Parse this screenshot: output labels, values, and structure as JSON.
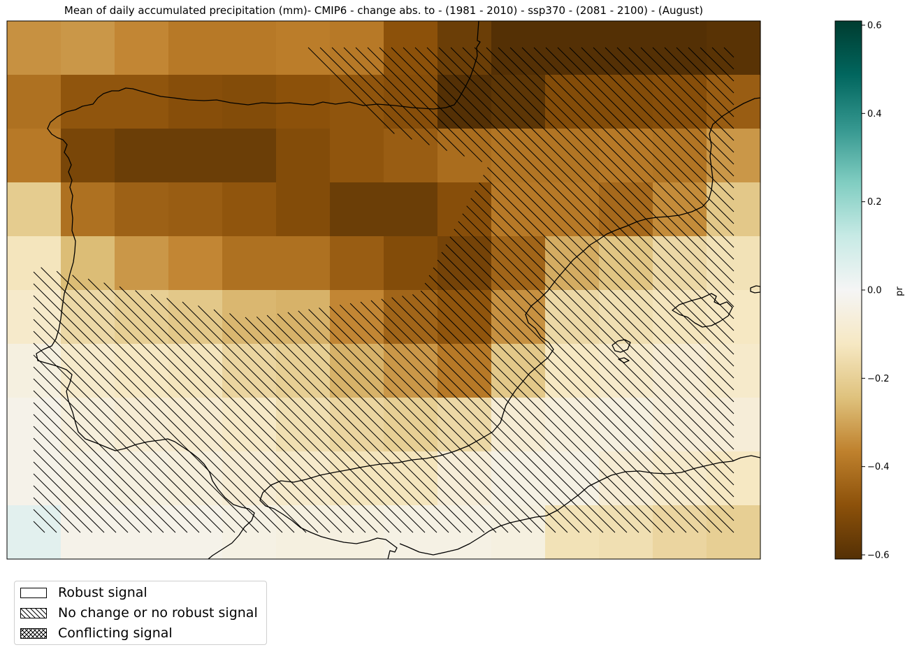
{
  "title": "Mean of daily accumulated precipitation (mm)- CMIP6 - change abs. to - (1981 - 2010)  - ssp370  - (2081 - 2100) - (August)",
  "colorbar": {
    "label": "pr",
    "range": [
      -0.6,
      0.6
    ],
    "ticks": [
      "0.6",
      "0.4",
      "0.2",
      "0.0",
      "−0.2",
      "−0.4",
      "−0.6"
    ],
    "tick_values": [
      0.6,
      0.4,
      0.2,
      0.0,
      -0.2,
      -0.4,
      -0.6
    ],
    "colormap": "BrBG",
    "colors": [
      "#543005",
      "#8c510a",
      "#bf812d",
      "#dfc27d",
      "#f6e8c3",
      "#f5f5f5",
      "#c7eae5",
      "#80cdc1",
      "#35978f",
      "#01665e",
      "#003c30"
    ]
  },
  "legend": {
    "items": [
      {
        "label": "Robust signal",
        "pattern": "none"
      },
      {
        "label": "No change or no robust signal",
        "pattern": "diagonal-hatch"
      },
      {
        "label": "Conflicting signal",
        "pattern": "cross-hatch"
      }
    ]
  },
  "grid": {
    "rows": 10,
    "cols": 14,
    "values": [
      [
        -0.33,
        -0.32,
        -0.35,
        -0.38,
        -0.38,
        -0.37,
        -0.38,
        -0.48,
        -0.55,
        -0.6,
        -0.6,
        -0.6,
        -0.6,
        -0.59
      ],
      [
        -0.4,
        -0.47,
        -0.47,
        -0.49,
        -0.5,
        -0.48,
        -0.47,
        -0.49,
        -0.6,
        -0.58,
        -0.5,
        -0.5,
        -0.49,
        -0.45
      ],
      [
        -0.38,
        -0.52,
        -0.55,
        -0.55,
        -0.55,
        -0.5,
        -0.47,
        -0.45,
        -0.41,
        -0.39,
        -0.39,
        -0.38,
        -0.39,
        -0.32
      ],
      [
        -0.21,
        -0.4,
        -0.44,
        -0.45,
        -0.47,
        -0.5,
        -0.55,
        -0.55,
        -0.49,
        -0.38,
        -0.38,
        -0.42,
        -0.34,
        -0.22
      ],
      [
        -0.13,
        -0.25,
        -0.32,
        -0.35,
        -0.4,
        -0.4,
        -0.45,
        -0.5,
        -0.53,
        -0.43,
        -0.28,
        -0.23,
        -0.17,
        -0.14
      ],
      [
        -0.1,
        -0.17,
        -0.2,
        -0.22,
        -0.26,
        -0.27,
        -0.35,
        -0.43,
        -0.47,
        -0.33,
        -0.17,
        -0.15,
        -0.13,
        -0.12
      ],
      [
        -0.05,
        -0.1,
        -0.12,
        -0.13,
        -0.18,
        -0.2,
        -0.27,
        -0.32,
        -0.38,
        -0.22,
        -0.12,
        -0.1,
        -0.08,
        -0.1
      ],
      [
        -0.03,
        -0.06,
        -0.08,
        -0.09,
        -0.11,
        -0.15,
        -0.18,
        -0.2,
        -0.17,
        -0.08,
        -0.06,
        -0.05,
        -0.07,
        -0.07
      ],
      [
        -0.03,
        -0.04,
        -0.05,
        -0.06,
        -0.08,
        -0.1,
        -0.13,
        -0.13,
        -0.07,
        -0.04,
        -0.04,
        -0.08,
        -0.1,
        -0.12
      ],
      [
        0.05,
        -0.03,
        -0.03,
        -0.03,
        -0.04,
        -0.05,
        -0.05,
        -0.04,
        -0.04,
        -0.05,
        -0.14,
        -0.15,
        -0.18,
        -0.2
      ]
    ]
  }
}
